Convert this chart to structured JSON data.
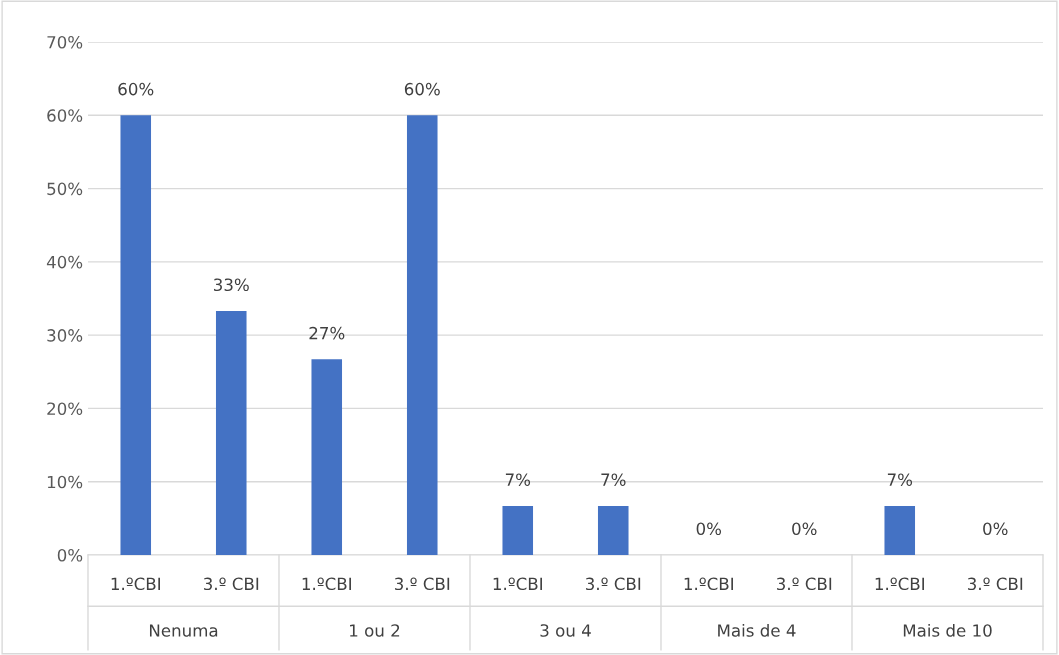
{
  "chart_data": {
    "type": "bar",
    "categories": [
      "1.ºCBI",
      "3.º CBI",
      "1.ºCBI",
      "3.º CBI",
      "1.ºCBI",
      "3.º CBI",
      "1.ºCBI",
      "3.º CBI",
      "1.ºCBI",
      "3.º CBI"
    ],
    "values": [
      60,
      33.3,
      26.7,
      60,
      6.7,
      6.7,
      0,
      0,
      6.7,
      0
    ],
    "value_labels": [
      "60%",
      "33%",
      "27%",
      "60%",
      "7%",
      "7%",
      "0%",
      "0%",
      "7%",
      "0%"
    ],
    "color": "#4472c4",
    "ylim": [
      0,
      70
    ],
    "yticks": [
      {
        "value": 0,
        "label": "0%"
      },
      {
        "value": 10,
        "label": "10%"
      },
      {
        "value": 20,
        "label": "20%"
      },
      {
        "value": 30,
        "label": "30%"
      },
      {
        "value": 40,
        "label": "40%"
      },
      {
        "value": 50,
        "label": "50%"
      },
      {
        "value": 60,
        "label": "60%"
      },
      {
        "value": 70,
        "label": "70%"
      }
    ],
    "grid": "y",
    "annotations": [
      "Nenuma",
      "1 ou 2",
      "3 ou 4",
      "Mais de 4",
      "Mais de 10"
    ]
  }
}
